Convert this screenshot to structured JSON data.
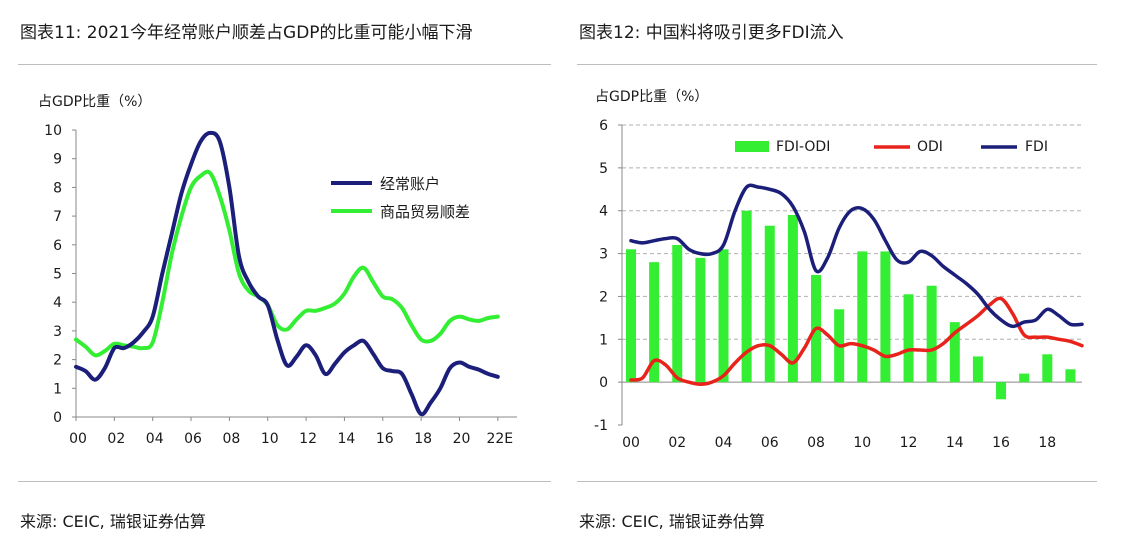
{
  "left": {
    "title": "图表11: 2021今年经常账户顺差占GDP的比重可能小幅下滑",
    "source": "来源: CEIC, 瑞银证券估算"
  },
  "right": {
    "title": "图表12: 中国料将吸引更多FDI流入",
    "source": "来源: CEIC, 瑞银证券估算"
  },
  "chart_data": [
    {
      "type": "line",
      "ylabel": "占GDP比重（%）",
      "xlabel": "",
      "ylim": [
        0,
        10
      ],
      "yticks": [
        0,
        1,
        2,
        3,
        4,
        5,
        6,
        7,
        8,
        9,
        10
      ],
      "xlim": [
        0,
        23
      ],
      "xticks": [
        0,
        2,
        4,
        6,
        8,
        10,
        12,
        14,
        16,
        18,
        20,
        22
      ],
      "xtick_labels": [
        "00",
        "02",
        "04",
        "06",
        "08",
        "10",
        "12",
        "14",
        "16",
        "18",
        "20",
        "22E"
      ],
      "grid": false,
      "legend_position": "upper-right",
      "series": [
        {
          "name": "经常账户",
          "color": "#1b1f7a",
          "x": [
            0,
            0.5,
            1,
            1.5,
            2,
            2.5,
            3,
            3.5,
            4,
            4.5,
            5,
            5.5,
            6,
            6.5,
            7,
            7.5,
            8,
            8.5,
            9,
            9.5,
            10,
            10.5,
            11,
            11.5,
            12,
            12.5,
            13,
            13.5,
            14,
            14.5,
            15,
            15.5,
            16,
            16.5,
            17,
            17.5,
            18,
            18.5,
            19,
            19.5,
            20,
            20.5,
            21,
            21.5,
            22
          ],
          "values": [
            1.75,
            1.6,
            1.3,
            1.7,
            2.4,
            2.4,
            2.6,
            2.95,
            3.5,
            5.0,
            6.4,
            7.8,
            8.8,
            9.6,
            9.9,
            9.6,
            8.0,
            5.6,
            4.7,
            4.2,
            3.9,
            2.7,
            1.8,
            2.1,
            2.5,
            2.15,
            1.5,
            1.85,
            2.25,
            2.5,
            2.65,
            2.2,
            1.7,
            1.6,
            1.5,
            0.8,
            0.1,
            0.5,
            1.0,
            1.7,
            1.9,
            1.75,
            1.65,
            1.5,
            1.4
          ]
        },
        {
          "name": "商品贸易顺差",
          "color": "#33ee33",
          "x": [
            0,
            0.5,
            1,
            1.5,
            2,
            2.5,
            3,
            3.5,
            4,
            4.5,
            5,
            5.5,
            6,
            6.5,
            7,
            7.5,
            8,
            8.5,
            9,
            9.5,
            10,
            10.5,
            11,
            11.5,
            12,
            12.5,
            13,
            13.5,
            14,
            14.5,
            15,
            15.5,
            16,
            16.5,
            17,
            17.5,
            18,
            18.5,
            19,
            19.5,
            20,
            20.5,
            21,
            21.5,
            22
          ],
          "values": [
            2.7,
            2.45,
            2.15,
            2.3,
            2.55,
            2.5,
            2.45,
            2.4,
            2.6,
            4.0,
            5.7,
            7.0,
            8.0,
            8.4,
            8.5,
            7.7,
            6.5,
            5.0,
            4.4,
            4.2,
            3.9,
            3.2,
            3.05,
            3.4,
            3.7,
            3.7,
            3.8,
            3.95,
            4.3,
            4.9,
            5.2,
            4.7,
            4.2,
            4.1,
            3.8,
            3.2,
            2.7,
            2.65,
            2.9,
            3.35,
            3.5,
            3.4,
            3.35,
            3.45,
            3.5
          ]
        }
      ]
    },
    {
      "type": "bar+line",
      "ylabel": "占GDP比重（%）",
      "xlabel": "",
      "ylim": [
        -1,
        6
      ],
      "yticks": [
        -1,
        0,
        1,
        2,
        3,
        4,
        5,
        6
      ],
      "xlim": [
        0,
        19.5
      ],
      "xticks": [
        0,
        2,
        4,
        6,
        8,
        10,
        12,
        14,
        16,
        18
      ],
      "xtick_labels": [
        "00",
        "02",
        "04",
        "06",
        "08",
        "10",
        "12",
        "14",
        "16",
        "18"
      ],
      "grid": "horizontal-dashed",
      "legend_position": "top",
      "bars": {
        "name": "FDI-ODI",
        "color": "#33ee33",
        "x": [
          0,
          1,
          2,
          3,
          4,
          5,
          6,
          7,
          8,
          9,
          10,
          11,
          12,
          13,
          14,
          15,
          16,
          17,
          18,
          19
        ],
        "values": [
          3.1,
          2.8,
          3.2,
          2.9,
          3.1,
          4.0,
          3.65,
          3.9,
          2.5,
          1.7,
          3.05,
          3.05,
          2.05,
          2.25,
          1.4,
          0.6,
          -0.4,
          0.2,
          0.65,
          0.3
        ]
      },
      "series": [
        {
          "name": "ODI",
          "color": "#e8231c",
          "x": [
            0,
            0.5,
            1,
            1.5,
            2,
            2.5,
            3,
            3.5,
            4,
            4.5,
            5,
            5.5,
            6,
            6.5,
            7,
            7.5,
            8,
            8.5,
            9,
            9.5,
            10,
            10.5,
            11,
            11.5,
            12,
            12.5,
            13,
            13.5,
            14,
            14.5,
            15,
            15.5,
            16,
            16.5,
            17,
            17.5,
            18,
            18.5,
            19,
            19.5
          ],
          "values": [
            0.05,
            0.1,
            0.5,
            0.4,
            0.1,
            0.0,
            -0.05,
            0.0,
            0.15,
            0.45,
            0.7,
            0.85,
            0.85,
            0.65,
            0.45,
            0.8,
            1.25,
            1.1,
            0.85,
            0.9,
            0.85,
            0.75,
            0.6,
            0.65,
            0.75,
            0.75,
            0.75,
            0.9,
            1.15,
            1.35,
            1.55,
            1.8,
            1.95,
            1.6,
            1.1,
            1.05,
            1.05,
            1.0,
            0.95,
            0.85
          ]
        },
        {
          "name": "FDI",
          "color": "#1b1f7a",
          "x": [
            0,
            0.5,
            1,
            1.5,
            2,
            2.5,
            3,
            3.5,
            4,
            4.5,
            5,
            5.5,
            6,
            6.5,
            7,
            7.5,
            8,
            8.5,
            9,
            9.5,
            10,
            10.5,
            11,
            11.5,
            12,
            12.5,
            13,
            13.5,
            14,
            14.5,
            15,
            15.5,
            16,
            16.5,
            17,
            17.5,
            18,
            18.5,
            19,
            19.5
          ],
          "values": [
            3.3,
            3.25,
            3.3,
            3.35,
            3.35,
            3.1,
            3.0,
            3.0,
            3.2,
            4.0,
            4.55,
            4.55,
            4.5,
            4.4,
            4.1,
            3.5,
            2.6,
            2.9,
            3.6,
            4.0,
            4.05,
            3.8,
            3.3,
            2.85,
            2.8,
            3.05,
            2.95,
            2.7,
            2.5,
            2.3,
            2.05,
            1.7,
            1.45,
            1.3,
            1.4,
            1.45,
            1.7,
            1.55,
            1.35,
            1.35
          ]
        }
      ]
    }
  ]
}
